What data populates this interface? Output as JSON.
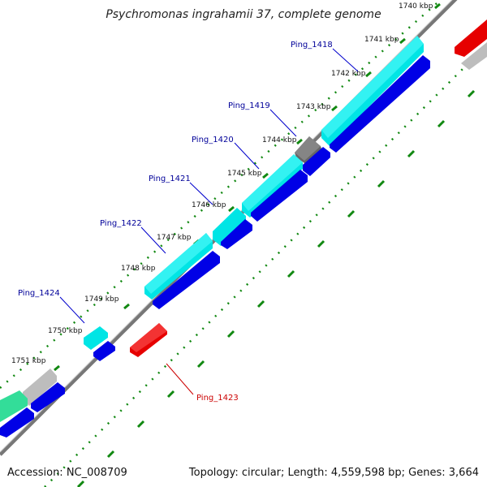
{
  "title": "Psychromonas ingrahamii 37, complete genome",
  "footer": {
    "accession": "Accession: NC_008709",
    "summary": "Topology: circular; Length: 4,559,598 bp; Genes: 3,664"
  },
  "colors": {
    "cds_forward": "#00e5e5",
    "cds_reverse": "#0000e6",
    "rna": "#e60000",
    "pseudo": "#666666",
    "other": "#bdbdbd",
    "green": "#33dd99",
    "tick": "#118811",
    "backbone": "#777777",
    "label_blue": "#000099",
    "label_red": "#cc0000"
  },
  "scale": {
    "kbp_labels": [
      "1740 kbp",
      "1741 kbp",
      "1742 kbp",
      "1743 kbp",
      "1744 kbp",
      "1745 kbp",
      "1746 kbp",
      "1747 kbp",
      "1748 kbp",
      "1749 kbp",
      "1750 kbp",
      "1751 kbp"
    ]
  },
  "gene_labels": [
    {
      "name": "Ping_1418",
      "color": "blue"
    },
    {
      "name": "Ping_1419",
      "color": "blue"
    },
    {
      "name": "Ping_1420",
      "color": "blue"
    },
    {
      "name": "Ping_1421",
      "color": "blue"
    },
    {
      "name": "Ping_1422",
      "color": "blue"
    },
    {
      "name": "Ping_1424",
      "color": "blue"
    },
    {
      "name": "Ping_1423",
      "color": "red"
    }
  ]
}
